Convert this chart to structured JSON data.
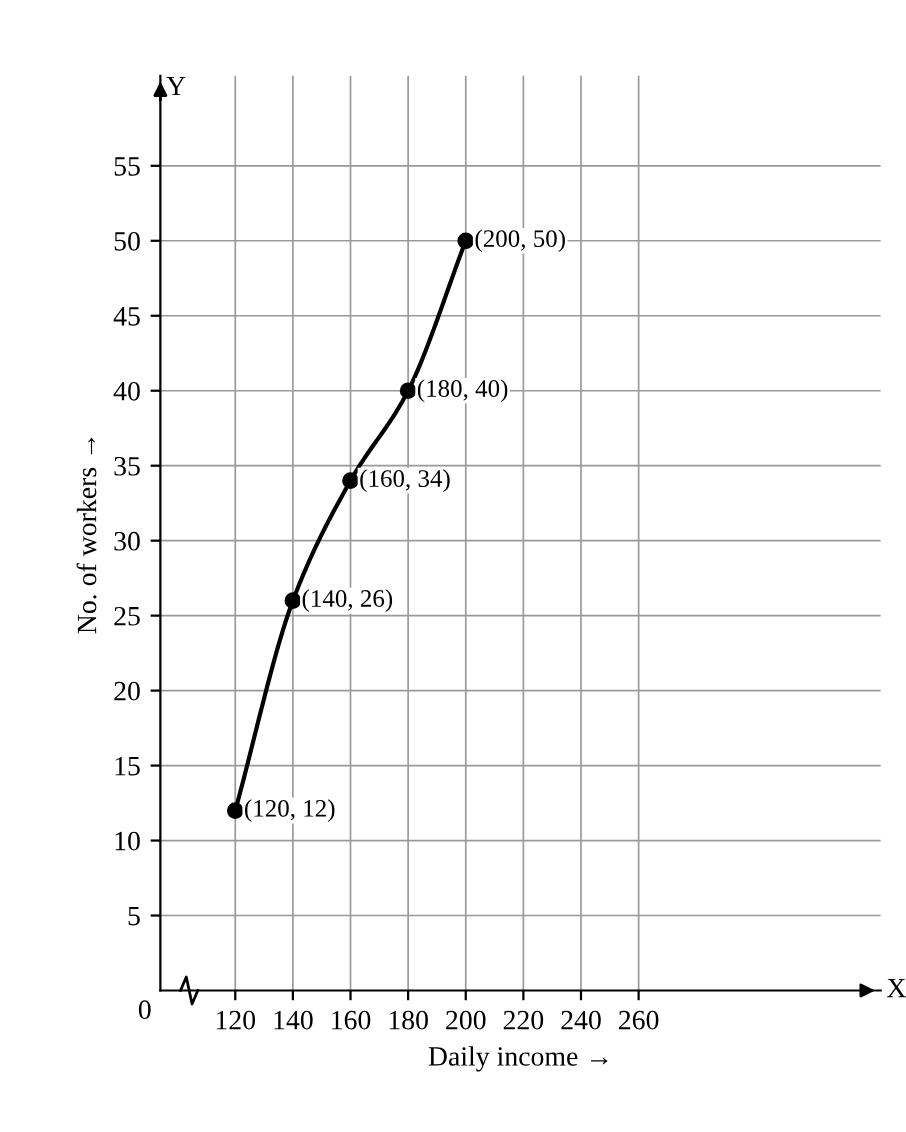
{
  "chart_data": {
    "type": "line",
    "xlabel": "Daily income →",
    "ylabel": "No. of workers →",
    "x": [
      120,
      140,
      160,
      180,
      200
    ],
    "series": [
      {
        "color": "#000000",
        "values": [
          12,
          26,
          34,
          40,
          50
        ]
      }
    ],
    "marker": "circle",
    "line_style": "solid",
    "grid": true,
    "xlim": [
      94,
      344
    ],
    "ylim": [
      0,
      61
    ],
    "xticks": [
      120,
      140,
      160,
      180,
      200,
      220,
      240,
      260
    ],
    "yticks": [
      5,
      10,
      15,
      20,
      25,
      30,
      35,
      40,
      45,
      50,
      55
    ],
    "annotations": [
      "0",
      "X",
      "Y",
      {
        "text": "(120, 12)",
        "x": 120,
        "y": 12
      },
      {
        "text": "(140, 26)",
        "x": 140,
        "y": 26
      },
      {
        "text": "(160, 34)",
        "x": 160,
        "y": 34
      },
      {
        "text": "(180, 40)",
        "x": 180,
        "y": 40
      },
      {
        "text": "(200, 50)",
        "x": 200,
        "y": 50
      }
    ]
  }
}
